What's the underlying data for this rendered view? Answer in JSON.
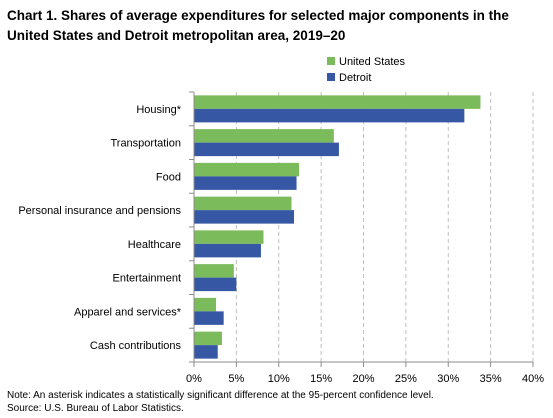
{
  "colors": {
    "united_states": "#7cbb5b",
    "detroit": "#3557a4",
    "gridline": "#bfbfbf",
    "axis": "#8c8c8c"
  },
  "notes": {
    "note": "Note: An asterisk indicates a statistically significant difference at the 95-percent confidence level.",
    "source": "Source: U.S. Bureau of Labor Statistics."
  },
  "chart_data": {
    "type": "bar",
    "orientation": "horizontal",
    "title": "Chart 1. Shares of average expenditures for selected major components in the United States and Detroit metropolitan area, 2019–20",
    "categories": [
      "Housing*",
      "Transportation",
      "Food",
      "Personal insurance and pensions",
      "Healthcare",
      "Entertainment",
      "Apparel and services*",
      "Cash contributions"
    ],
    "series": [
      {
        "name": "United States",
        "values": [
          33.8,
          16.5,
          12.4,
          11.5,
          8.2,
          4.7,
          2.6,
          3.3
        ]
      },
      {
        "name": "Detroit",
        "values": [
          31.9,
          17.1,
          12.1,
          11.8,
          7.9,
          5.0,
          3.5,
          2.8
        ]
      }
    ],
    "xlim": [
      0,
      40
    ],
    "x_ticks": [
      0,
      5,
      10,
      15,
      20,
      25,
      30,
      35,
      40
    ],
    "x_tick_labels": [
      "0%",
      "5%",
      "10%",
      "15%",
      "20%",
      "25%",
      "30%",
      "35%",
      "40%"
    ],
    "xlabel": "",
    "ylabel": "",
    "grid": "vertical dashed",
    "legend_position": "top-right"
  }
}
